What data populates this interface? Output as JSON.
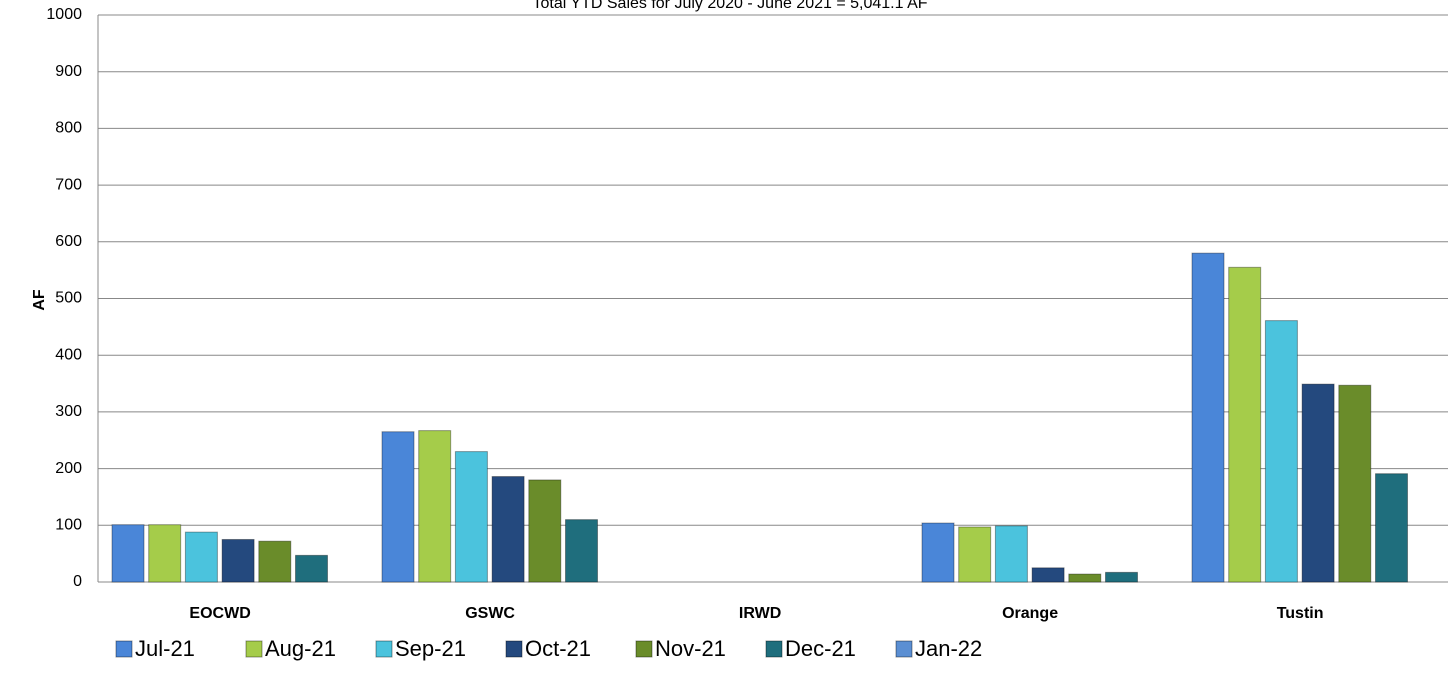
{
  "chart_data": {
    "type": "bar",
    "title": "Total YTD Sales for July 2020 - June 2021 = 5,041.1 AF",
    "y_label": "AF",
    "categories": [
      "EOCWD",
      "GSWC",
      "IRWD",
      "Orange",
      "Tustin"
    ],
    "series": [
      {
        "name": "Jul-21",
        "color": "#4a86d8",
        "values": [
          101,
          265,
          0,
          104,
          580
        ]
      },
      {
        "name": "Aug-21",
        "color": "#a5cc4a",
        "values": [
          101,
          267,
          0,
          97,
          555
        ]
      },
      {
        "name": "Sep-21",
        "color": "#4bc3dd",
        "values": [
          88,
          230,
          0,
          99,
          461
        ]
      },
      {
        "name": "Oct-21",
        "color": "#24497e",
        "values": [
          75,
          186,
          0,
          25,
          349
        ]
      },
      {
        "name": "Nov-21",
        "color": "#6a8c2a",
        "values": [
          72,
          180,
          0,
          14,
          347
        ]
      },
      {
        "name": "Dec-21",
        "color": "#1f6e7d",
        "values": [
          47,
          110,
          0,
          17,
          191
        ]
      },
      {
        "name": "Jan-22",
        "color": "#5b8fd3",
        "values": [
          null,
          null,
          null,
          null,
          null
        ]
      }
    ],
    "ylim": [
      0,
      1000
    ],
    "yticks": [
      0,
      100,
      200,
      300,
      400,
      500,
      600,
      700,
      800,
      900,
      1000
    ],
    "grid": true,
    "legend": "bottom"
  }
}
